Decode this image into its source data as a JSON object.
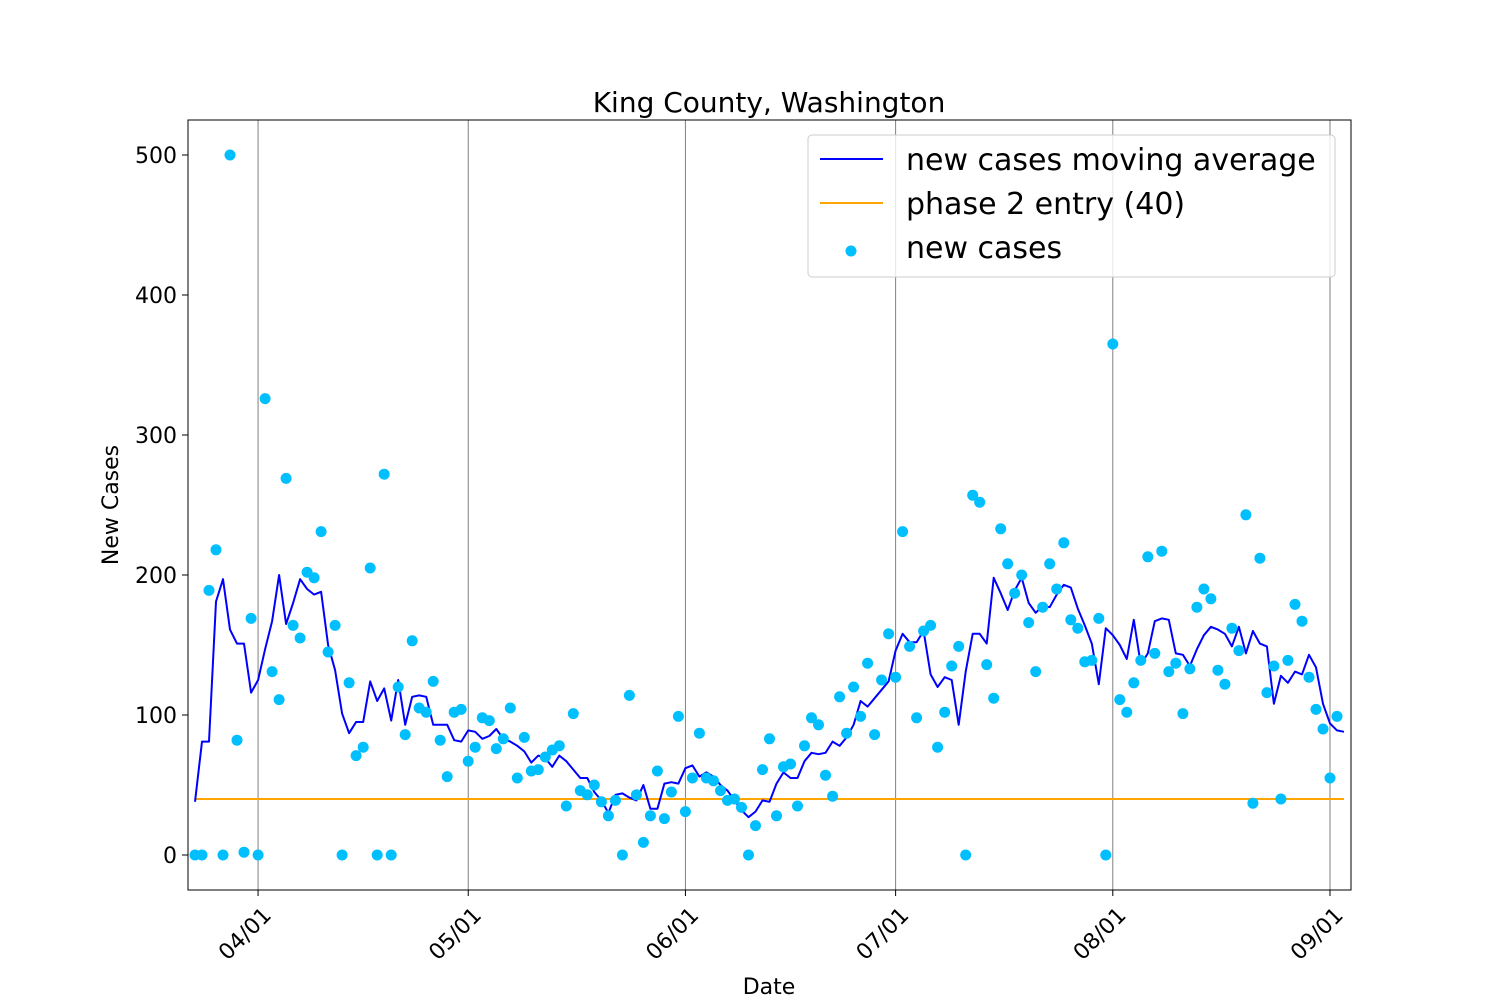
{
  "chart_data": {
    "type": "line",
    "title": "King County, Washington",
    "xlabel": "Date",
    "ylabel": "New Cases",
    "x_axis_type": "date",
    "xlim": [
      "2020-03-22",
      "2020-09-04"
    ],
    "ylim": [
      -25,
      525
    ],
    "grid": "vertical lines at x ticks",
    "legend_position": "top-right",
    "x_ticks": [
      {
        "date": "2020-04-01",
        "label": "04/01"
      },
      {
        "date": "2020-05-01",
        "label": "05/01"
      },
      {
        "date": "2020-06-01",
        "label": "06/01"
      },
      {
        "date": "2020-07-01",
        "label": "07/01"
      },
      {
        "date": "2020-08-01",
        "label": "08/01"
      },
      {
        "date": "2020-09-01",
        "label": "09/01"
      }
    ],
    "y_ticks": [
      {
        "value": 0,
        "label": "0"
      },
      {
        "value": 100,
        "label": "100"
      },
      {
        "value": 200,
        "label": "200"
      },
      {
        "value": 300,
        "label": "300"
      },
      {
        "value": 400,
        "label": "400"
      },
      {
        "value": 500,
        "label": "500"
      }
    ],
    "x_start_date": "2020-03-23",
    "series": [
      {
        "name": "new cases moving average",
        "kind": "line",
        "color": "#0000ff",
        "values": [
          38,
          81,
          81,
          181,
          197,
          161,
          151,
          151,
          116,
          125,
          147,
          167,
          200,
          165,
          180,
          197,
          190,
          186,
          188,
          150,
          132,
          101,
          87,
          95,
          95,
          124,
          110,
          119,
          96,
          125,
          93,
          113,
          114,
          113,
          93,
          93,
          93,
          82,
          81,
          89,
          88,
          83,
          85,
          90,
          83,
          81,
          78,
          74,
          66,
          71,
          69,
          63,
          71,
          67,
          61,
          55,
          55,
          45,
          39,
          30,
          43,
          44,
          41,
          39,
          50,
          33,
          33,
          51,
          52,
          51,
          62,
          64,
          56,
          59,
          56,
          50,
          46,
          39,
          32,
          27,
          31,
          39,
          38,
          51,
          59,
          55,
          55,
          67,
          73,
          72,
          73,
          81,
          78,
          84,
          93,
          110,
          106,
          112,
          118,
          124,
          146,
          158,
          152,
          152,
          160,
          129,
          120,
          127,
          125,
          93,
          131,
          158,
          158,
          151,
          198,
          187,
          175,
          189,
          198,
          180,
          173,
          178,
          177,
          186,
          193,
          191,
          176,
          164,
          151,
          122,
          162,
          157,
          150,
          140,
          168,
          136,
          144,
          167,
          169,
          168,
          144,
          143,
          135,
          147,
          157,
          163,
          161,
          158,
          149,
          163,
          144,
          160,
          151,
          149,
          108,
          128,
          123,
          131,
          129,
          143,
          134,
          108,
          94,
          89,
          88
        ]
      },
      {
        "name": "phase 2 entry (40)",
        "kind": "line",
        "color": "#ffa500",
        "constant": 40
      },
      {
        "name": "new cases",
        "kind": "scatter",
        "color": "#00bfff",
        "values": [
          0,
          0,
          189,
          218,
          0,
          500,
          82,
          2,
          169,
          0,
          326,
          131,
          111,
          269,
          164,
          155,
          202,
          198,
          231,
          145,
          164,
          0,
          123,
          71,
          77,
          205,
          0,
          272,
          0,
          120,
          86,
          153,
          105,
          102,
          124,
          82,
          56,
          102,
          104,
          67,
          77,
          98,
          96,
          76,
          83,
          105,
          55,
          84,
          60,
          61,
          70,
          75,
          78,
          35,
          101,
          46,
          43,
          50,
          38,
          28,
          39,
          0,
          114,
          43,
          9,
          28,
          60,
          26,
          45,
          99,
          31,
          55,
          87,
          55,
          53,
          46,
          39,
          40,
          34,
          0,
          21,
          61,
          83,
          28,
          63,
          65,
          35,
          78,
          98,
          93,
          57,
          42,
          113,
          87,
          120,
          99,
          137,
          86,
          125,
          158,
          127,
          231,
          149,
          98,
          160,
          164,
          77,
          102,
          135,
          149,
          0,
          257,
          252,
          136,
          112,
          233,
          208,
          187,
          200,
          166,
          131,
          177,
          208,
          190,
          223,
          168,
          162,
          138,
          139,
          169,
          0,
          365,
          111,
          102,
          123,
          139,
          213,
          144,
          217,
          131,
          137,
          101,
          133,
          177,
          190,
          183,
          132,
          122,
          162,
          146,
          243,
          37,
          212,
          116,
          135,
          40,
          139,
          179,
          167,
          127,
          104,
          90,
          55,
          99
        ]
      }
    ]
  }
}
